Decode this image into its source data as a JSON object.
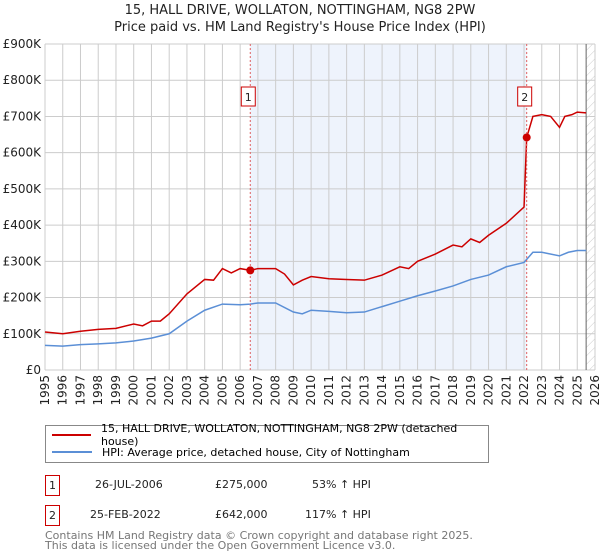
{
  "chart_data": {
    "type": "line",
    "title": "15, HALL DRIVE, WOLLATON, NOTTINGHAM, NG8 2PW",
    "subtitle": "Price paid vs. HM Land Registry's House Price Index (HPI)",
    "xlim": [
      1995,
      2026
    ],
    "ylim": [
      0,
      900000
    ],
    "yticks": [
      {
        "v": 0,
        "label": "£0"
      },
      {
        "v": 100000,
        "label": "£100K"
      },
      {
        "v": 200000,
        "label": "£200K"
      },
      {
        "v": 300000,
        "label": "£300K"
      },
      {
        "v": 400000,
        "label": "£400K"
      },
      {
        "v": 500000,
        "label": "£500K"
      },
      {
        "v": 600000,
        "label": "£600K"
      },
      {
        "v": 700000,
        "label": "£700K"
      },
      {
        "v": 800000,
        "label": "£800K"
      },
      {
        "v": 900000,
        "label": "£900K"
      }
    ],
    "xticks": [
      "1995",
      "1996",
      "1997",
      "1998",
      "1999",
      "2000",
      "2001",
      "2002",
      "2003",
      "2004",
      "2005",
      "2006",
      "2007",
      "2008",
      "2009",
      "2010",
      "2011",
      "2012",
      "2013",
      "2014",
      "2015",
      "2016",
      "2017",
      "2018",
      "2019",
      "2020",
      "2021",
      "2022",
      "2023",
      "2024",
      "2025",
      "2026"
    ],
    "grid": true,
    "shaded_range": [
      2006.57,
      2022.15
    ],
    "hatched_from": 2025.5,
    "series": [
      {
        "name": "15, HALL DRIVE, WOLLATON, NOTTINGHAM, NG8 2PW (detached house)",
        "color": "#cc0000",
        "x": [
          1995,
          1996,
          1997,
          1998,
          1999,
          2000,
          2000.5,
          2001,
          2001.5,
          2002,
          2003,
          2004,
          2004.5,
          2005,
          2005.5,
          2006,
          2006.57,
          2007,
          2008,
          2008.5,
          2009,
          2009.5,
          2010,
          2011,
          2012,
          2013,
          2014,
          2015,
          2015.5,
          2016,
          2017,
          2018,
          2018.5,
          2019,
          2019.5,
          2020,
          2021,
          2022.0,
          2022.15,
          2022.5,
          2023,
          2023.5,
          2024,
          2024.3,
          2024.7,
          2025,
          2025.5
        ],
        "y": [
          105000,
          100000,
          107000,
          112000,
          115000,
          127000,
          122000,
          135000,
          135000,
          155000,
          210000,
          250000,
          248000,
          280000,
          268000,
          280000,
          275000,
          280000,
          280000,
          265000,
          235000,
          248000,
          258000,
          252000,
          250000,
          248000,
          262000,
          285000,
          280000,
          300000,
          320000,
          345000,
          340000,
          362000,
          352000,
          372000,
          405000,
          450000,
          642000,
          700000,
          705000,
          700000,
          670000,
          700000,
          705000,
          712000,
          710000
        ]
      },
      {
        "name": "HPI: Average price, detached house, City of Nottingham",
        "color": "#5b8fd6",
        "x": [
          1995,
          1996,
          1997,
          1998,
          1999,
          2000,
          2001,
          2002,
          2003,
          2004,
          2005,
          2006,
          2006.57,
          2007,
          2008,
          2009,
          2009.5,
          2010,
          2011,
          2012,
          2013,
          2014,
          2015,
          2016,
          2017,
          2018,
          2019,
          2020,
          2021,
          2022,
          2022.5,
          2023,
          2024,
          2024.5,
          2025,
          2025.5
        ],
        "y": [
          68000,
          66000,
          70000,
          72000,
          75000,
          80000,
          88000,
          100000,
          135000,
          165000,
          182000,
          180000,
          182000,
          185000,
          185000,
          160000,
          155000,
          165000,
          162000,
          158000,
          160000,
          175000,
          190000,
          205000,
          218000,
          232000,
          250000,
          262000,
          285000,
          297000,
          325000,
          325000,
          315000,
          325000,
          330000,
          330000
        ]
      }
    ],
    "sales": [
      {
        "id": "1",
        "x": 2006.57,
        "y": 275000,
        "date": "26-JUL-2006",
        "price": "£275,000",
        "hpi": "53% ↑ HPI"
      },
      {
        "id": "2",
        "x": 2022.15,
        "y": 642000,
        "date": "25-FEB-2022",
        "price": "£642,000",
        "hpi": "117% ↑ HPI"
      }
    ]
  },
  "footer": {
    "line1": "Contains HM Land Registry data © Crown copyright and database right 2025.",
    "line2": "This data is licensed under the Open Government Licence v3.0."
  }
}
